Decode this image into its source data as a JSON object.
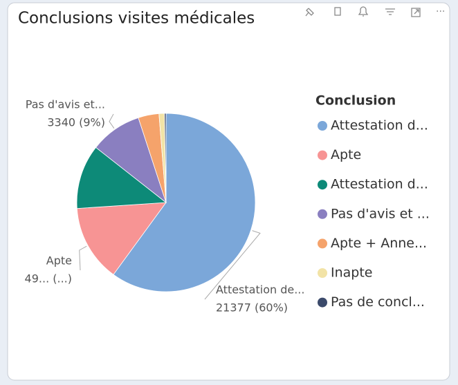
{
  "chart_data": {
    "type": "pie",
    "title": "Conclusions visites médicales",
    "legend_title": "Conclusion",
    "categories": [
      "Attestation d...",
      "Apte",
      "Attestation d...",
      "Pas d'avis et ...",
      "Apte + Anne...",
      "Inapte",
      "Pas de concl..."
    ],
    "values": [
      21377,
      4950,
      4150,
      3340,
      1340,
      350,
      100
    ],
    "colors": [
      "#7ba7d9",
      "#f79494",
      "#0d8a78",
      "#8a7fc0",
      "#f5a36b",
      "#f2e3a6",
      "#3b4a6b"
    ],
    "label_names": [
      "Attestation de...",
      "Apte",
      null,
      "Pas d'avis et...",
      null,
      null,
      null
    ],
    "value_labels": [
      "21377 (60%)",
      "49... (...)",
      null,
      "3340 (9%)",
      null,
      null,
      null
    ],
    "legend": "right"
  }
}
